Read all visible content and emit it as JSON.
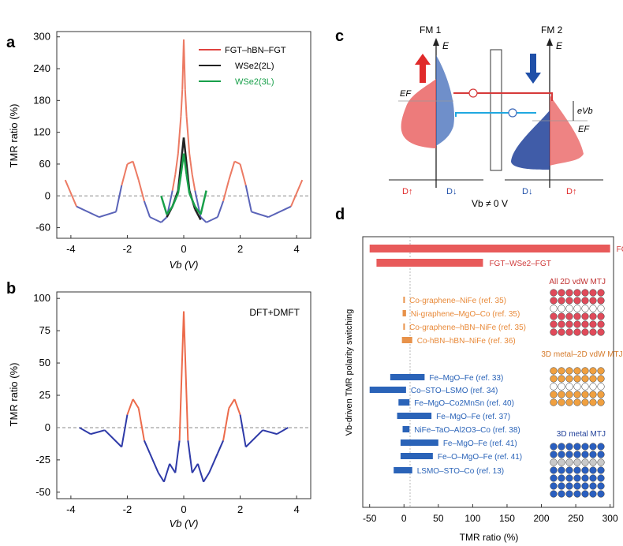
{
  "panels": {
    "a": {
      "letter": "a",
      "ylabel": "TMR ratio (%)",
      "xlabel": "Vb (V)",
      "xticks": [
        "-4",
        "-2",
        "0",
        "2",
        "4"
      ],
      "yticks": [
        "300",
        "240",
        "180",
        "120",
        "60",
        "0",
        "-60"
      ],
      "legend": [
        {
          "label": "FGT–hBN–FGT",
          "color": "#e0433f"
        },
        {
          "label": "WSe2(2L)",
          "color": "#222222"
        },
        {
          "label": "WSe2(3L)",
          "color": "#18a04a"
        }
      ]
    },
    "b": {
      "letter": "b",
      "ylabel": "TMR ratio (%)",
      "xlabel": "Vb (V)",
      "annotation": "DFT+DMFT",
      "xticks": [
        "-4",
        "-2",
        "0",
        "2",
        "4"
      ],
      "yticks": [
        "100",
        "75",
        "50",
        "25",
        "0",
        "-25",
        "-50"
      ]
    },
    "c": {
      "letter": "c",
      "fm1": "FM 1",
      "fm2": "FM 2",
      "energy_label": "E",
      "ef_left": "EF",
      "ef_right": "EF",
      "ev_label": "eVb",
      "d_up": "D↑",
      "d_down": "D↓",
      "vb_label": "Vb ≠ 0 V"
    },
    "d": {
      "letter": "d",
      "xlabel": "TMR ratio (%)",
      "ylabel": "Vb-driven TMR polarity switching",
      "xticks": [
        "-50",
        "0",
        "50",
        "100",
        "150",
        "200",
        "250",
        "300"
      ],
      "group_labels": [
        "All 2D vdW MTJ",
        "3D metal–2D vdW MTJ",
        "3D metal MTJ"
      ]
    }
  },
  "chart_data": [
    {
      "type": "line",
      "panel": "a",
      "xlim": [
        -4.5,
        4.5
      ],
      "ylim": [
        -80,
        310
      ],
      "series": [
        {
          "name": "FGT–hBN–FGT",
          "x": [
            -4.2,
            -3.8,
            -3.0,
            -2.4,
            -2.2,
            -2.0,
            -1.8,
            -1.6,
            -1.4,
            -1.2,
            -1.0,
            -0.8,
            -0.6,
            -0.4,
            -0.3,
            -0.2,
            -0.1,
            -0.05,
            0,
            0.05,
            0.1,
            0.2,
            0.3,
            0.4,
            0.6,
            0.8,
            1.0,
            1.2,
            1.4,
            1.6,
            1.8,
            2.0,
            2.2,
            2.4,
            3.0,
            3.8,
            4.2
          ],
          "y": [
            30,
            -20,
            -40,
            -30,
            20,
            60,
            65,
            30,
            -10,
            -40,
            -45,
            -50,
            -40,
            10,
            40,
            80,
            150,
            200,
            295,
            200,
            150,
            80,
            40,
            10,
            -40,
            -50,
            -45,
            -40,
            -10,
            30,
            65,
            60,
            20,
            -30,
            -40,
            -20,
            30
          ]
        },
        {
          "name": "WSe2(2L)",
          "x": [
            -0.6,
            -0.4,
            -0.2,
            -0.1,
            0,
            0.1,
            0.2,
            0.4,
            0.6
          ],
          "y": [
            -40,
            -20,
            10,
            60,
            110,
            60,
            10,
            -25,
            -45
          ]
        },
        {
          "name": "WSe2(3L)",
          "x": [
            -0.8,
            -0.6,
            -0.4,
            -0.2,
            -0.1,
            0,
            0.1,
            0.2,
            0.4,
            0.6,
            0.8
          ],
          "y": [
            0,
            -35,
            -20,
            5,
            40,
            80,
            40,
            5,
            -20,
            -35,
            10
          ]
        }
      ]
    },
    {
      "type": "line",
      "panel": "b",
      "xlim": [
        -4.5,
        4.5
      ],
      "ylim": [
        -55,
        105
      ],
      "series": [
        {
          "name": "DFT+DMFT",
          "x": [
            -3.7,
            -3.3,
            -2.8,
            -2.2,
            -2.0,
            -1.8,
            -1.6,
            -1.4,
            -1.2,
            -0.9,
            -0.7,
            -0.5,
            -0.3,
            -0.15,
            0,
            0.15,
            0.3,
            0.5,
            0.7,
            0.9,
            1.2,
            1.4,
            1.6,
            1.8,
            2.0,
            2.2,
            2.8,
            3.3,
            3.7
          ],
          "y": [
            0,
            -5,
            -2,
            -15,
            10,
            22,
            15,
            -10,
            -20,
            -35,
            -42,
            -28,
            -35,
            -10,
            90,
            -10,
            -35,
            -28,
            -42,
            -35,
            -20,
            -10,
            15,
            22,
            10,
            -15,
            -2,
            -5,
            0
          ]
        }
      ]
    },
    {
      "type": "bar",
      "panel": "d",
      "orientation": "horizontal",
      "xlim": [
        -60,
        305
      ],
      "categories": [
        "FGT–hBN–FGT",
        "FGT–WSe2–FGT",
        "Co-graphene–NiFe (ref. 35)",
        "Ni-graphene–MgO–Co (ref. 35)",
        "Co-graphene–hBN–NiFe (ref. 35)",
        "Co-hBN–hBN–NiFe (ref. 36)",
        "Fe–MgO–Fe (ref. 33)",
        "Co–STO–LSMO (ref. 34)",
        "Fe–MgO–Co2MnSn (ref. 40)",
        "Fe–MgO–Fe (ref. 37)",
        "NiFe–TaO–Al2O3–Co (ref. 38)",
        "Fe–MgO–Fe (ref. 41)",
        "Fe–O–MgO–Fe (ref. 41)",
        "LSMO–STO–Co (ref. 13)"
      ],
      "ranges": [
        [
          -50,
          300
        ],
        [
          -40,
          115
        ],
        [
          -1,
          1
        ],
        [
          -2,
          3
        ],
        [
          -1,
          1
        ],
        [
          -3,
          12
        ],
        [
          -20,
          30
        ],
        [
          -50,
          3
        ],
        [
          -8,
          8
        ],
        [
          -10,
          40
        ],
        [
          -2,
          8
        ],
        [
          -5,
          50
        ],
        [
          -5,
          42
        ],
        [
          -15,
          12
        ]
      ],
      "groups": [
        "",
        "",
        "All 2D vdW MTJ",
        "All 2D vdW MTJ",
        "All 2D vdW MTJ",
        "All 2D vdW MTJ",
        "3D metal MTJ",
        "3D metal MTJ",
        "3D metal MTJ",
        "3D metal MTJ",
        "3D metal MTJ",
        "3D metal MTJ",
        "3D metal MTJ",
        "3D metal MTJ"
      ],
      "colors": {
        "vdw": "#e85a5a",
        "ref2d": "#e8924a",
        "ref3d": "#2a63b8"
      }
    }
  ]
}
